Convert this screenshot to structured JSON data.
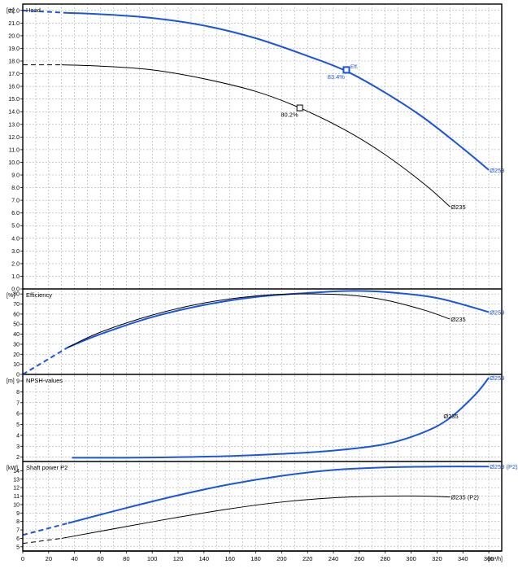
{
  "colors": {
    "blue": "#1a55e0",
    "black": "#000000",
    "grid": "#9a9a9a",
    "frame": "#000000"
  },
  "x_axis": {
    "unit_label": "[m³/h]",
    "min": 0,
    "max": 370,
    "ticks": [
      0,
      20,
      40,
      60,
      80,
      100,
      120,
      140,
      160,
      180,
      200,
      220,
      240,
      260,
      280,
      300,
      320,
      340,
      360
    ]
  },
  "chart_data": [
    {
      "type": "line",
      "panel": "head",
      "title": "Head",
      "unit_label": "[m]",
      "ylim": [
        0,
        22.5
      ],
      "y_ticks": [
        "0.0",
        "1.0",
        "2.0",
        "3.0",
        "4.0",
        "5.0",
        "6.0",
        "7.0",
        "8.0",
        "9.0",
        "10.0",
        "11.0",
        "12.0",
        "13.0",
        "14.0",
        "15.0",
        "16.0",
        "17.0",
        "18.0",
        "19.0",
        "20.0",
        "21.0",
        "22.0"
      ],
      "grid": true,
      "series": [
        {
          "name": "Ø259",
          "color": "blue",
          "dashed": {
            "x": [
              0,
              35
            ],
            "y": [
              22.0,
              21.8
            ]
          },
          "x": [
            35,
            60,
            100,
            140,
            180,
            220,
            250,
            280,
            310,
            340,
            360
          ],
          "y": [
            21.8,
            21.7,
            21.4,
            20.8,
            19.8,
            18.4,
            17.2,
            15.5,
            13.5,
            11.1,
            9.4
          ]
        },
        {
          "name": "Ø235",
          "color": "black",
          "dashed": {
            "x": [
              0,
              30
            ],
            "y": [
              17.7,
              17.7
            ]
          },
          "x": [
            30,
            60,
            100,
            140,
            180,
            214,
            250,
            280,
            310,
            330
          ],
          "y": [
            17.7,
            17.6,
            17.3,
            16.6,
            15.6,
            14.3,
            12.5,
            10.6,
            8.3,
            6.5
          ]
        }
      ],
      "markers": [
        {
          "label": "80.2%",
          "x": 214,
          "y": 14.3,
          "color": "black"
        },
        {
          "label": "83.4%",
          "x": 250,
          "y": 17.3,
          "color": "blue",
          "extra_label": "Eff."
        }
      ]
    },
    {
      "type": "line",
      "panel": "efficiency",
      "title": "Efficiency",
      "unit_label": "[%]",
      "ylim": [
        0,
        85
      ],
      "y_ticks": [
        "0",
        "10",
        "20",
        "30",
        "40",
        "50",
        "60",
        "70",
        "80"
      ],
      "grid": true,
      "series": [
        {
          "name": "Ø259",
          "color": "blue",
          "dashed": {
            "x": [
              0,
              35
            ],
            "y": [
              0,
              27
            ]
          },
          "x": [
            35,
            60,
            100,
            140,
            180,
            220,
            250,
            280,
            320,
            360
          ],
          "y": [
            27,
            40,
            57,
            69,
            77,
            81,
            83,
            82,
            76,
            62
          ]
        },
        {
          "name": "Ø235",
          "color": "black",
          "x": [
            35,
            60,
            100,
            140,
            180,
            214,
            250,
            280,
            310,
            330
          ],
          "y": [
            27,
            42,
            59,
            71,
            78,
            80,
            79,
            74,
            64,
            55
          ]
        }
      ]
    },
    {
      "type": "line",
      "panel": "npsh",
      "title": "NPSH-values",
      "unit_label": "[m]",
      "ylim": [
        1.6,
        9.6
      ],
      "y_ticks": [
        "2",
        "3",
        "4",
        "5",
        "6",
        "7",
        "8",
        "9"
      ],
      "grid": true,
      "series": [
        {
          "name": "Ø259",
          "color": "blue",
          "x": [
            38,
            80,
            120,
            160,
            200,
            240,
            280,
            310,
            330,
            350,
            360
          ],
          "y": [
            1.95,
            1.95,
            2.0,
            2.1,
            2.3,
            2.6,
            3.2,
            4.3,
            5.6,
            7.8,
            9.3
          ]
        }
      ],
      "labels": [
        {
          "name": "Ø235",
          "x": 330,
          "y": 5.8
        }
      ]
    },
    {
      "type": "line",
      "panel": "power",
      "title": "Shaft power P2",
      "unit_label": "[kW]",
      "ylim": [
        4.5,
        15.1
      ],
      "y_ticks": [
        "5",
        "6",
        "7",
        "8",
        "9",
        "10",
        "11",
        "12",
        "13",
        "14"
      ],
      "grid": true,
      "series": [
        {
          "name": "Ø259 (P2)",
          "color": "blue",
          "dashed": {
            "x": [
              0,
              35
            ],
            "y": [
              6.4,
              7.8
            ]
          },
          "x": [
            35,
            80,
            120,
            160,
            200,
            240,
            280,
            320,
            360
          ],
          "y": [
            7.8,
            9.6,
            11.1,
            12.4,
            13.4,
            14.1,
            14.4,
            14.5,
            14.5
          ]
        },
        {
          "name": "Ø235 (P2)",
          "color": "black",
          "dashed": {
            "x": [
              0,
              30
            ],
            "y": [
              5.4,
              6.0
            ]
          },
          "x": [
            30,
            80,
            120,
            160,
            200,
            240,
            280,
            310,
            330
          ],
          "y": [
            6.0,
            7.4,
            8.5,
            9.5,
            10.3,
            10.8,
            11.0,
            11.0,
            10.9
          ]
        }
      ]
    }
  ]
}
